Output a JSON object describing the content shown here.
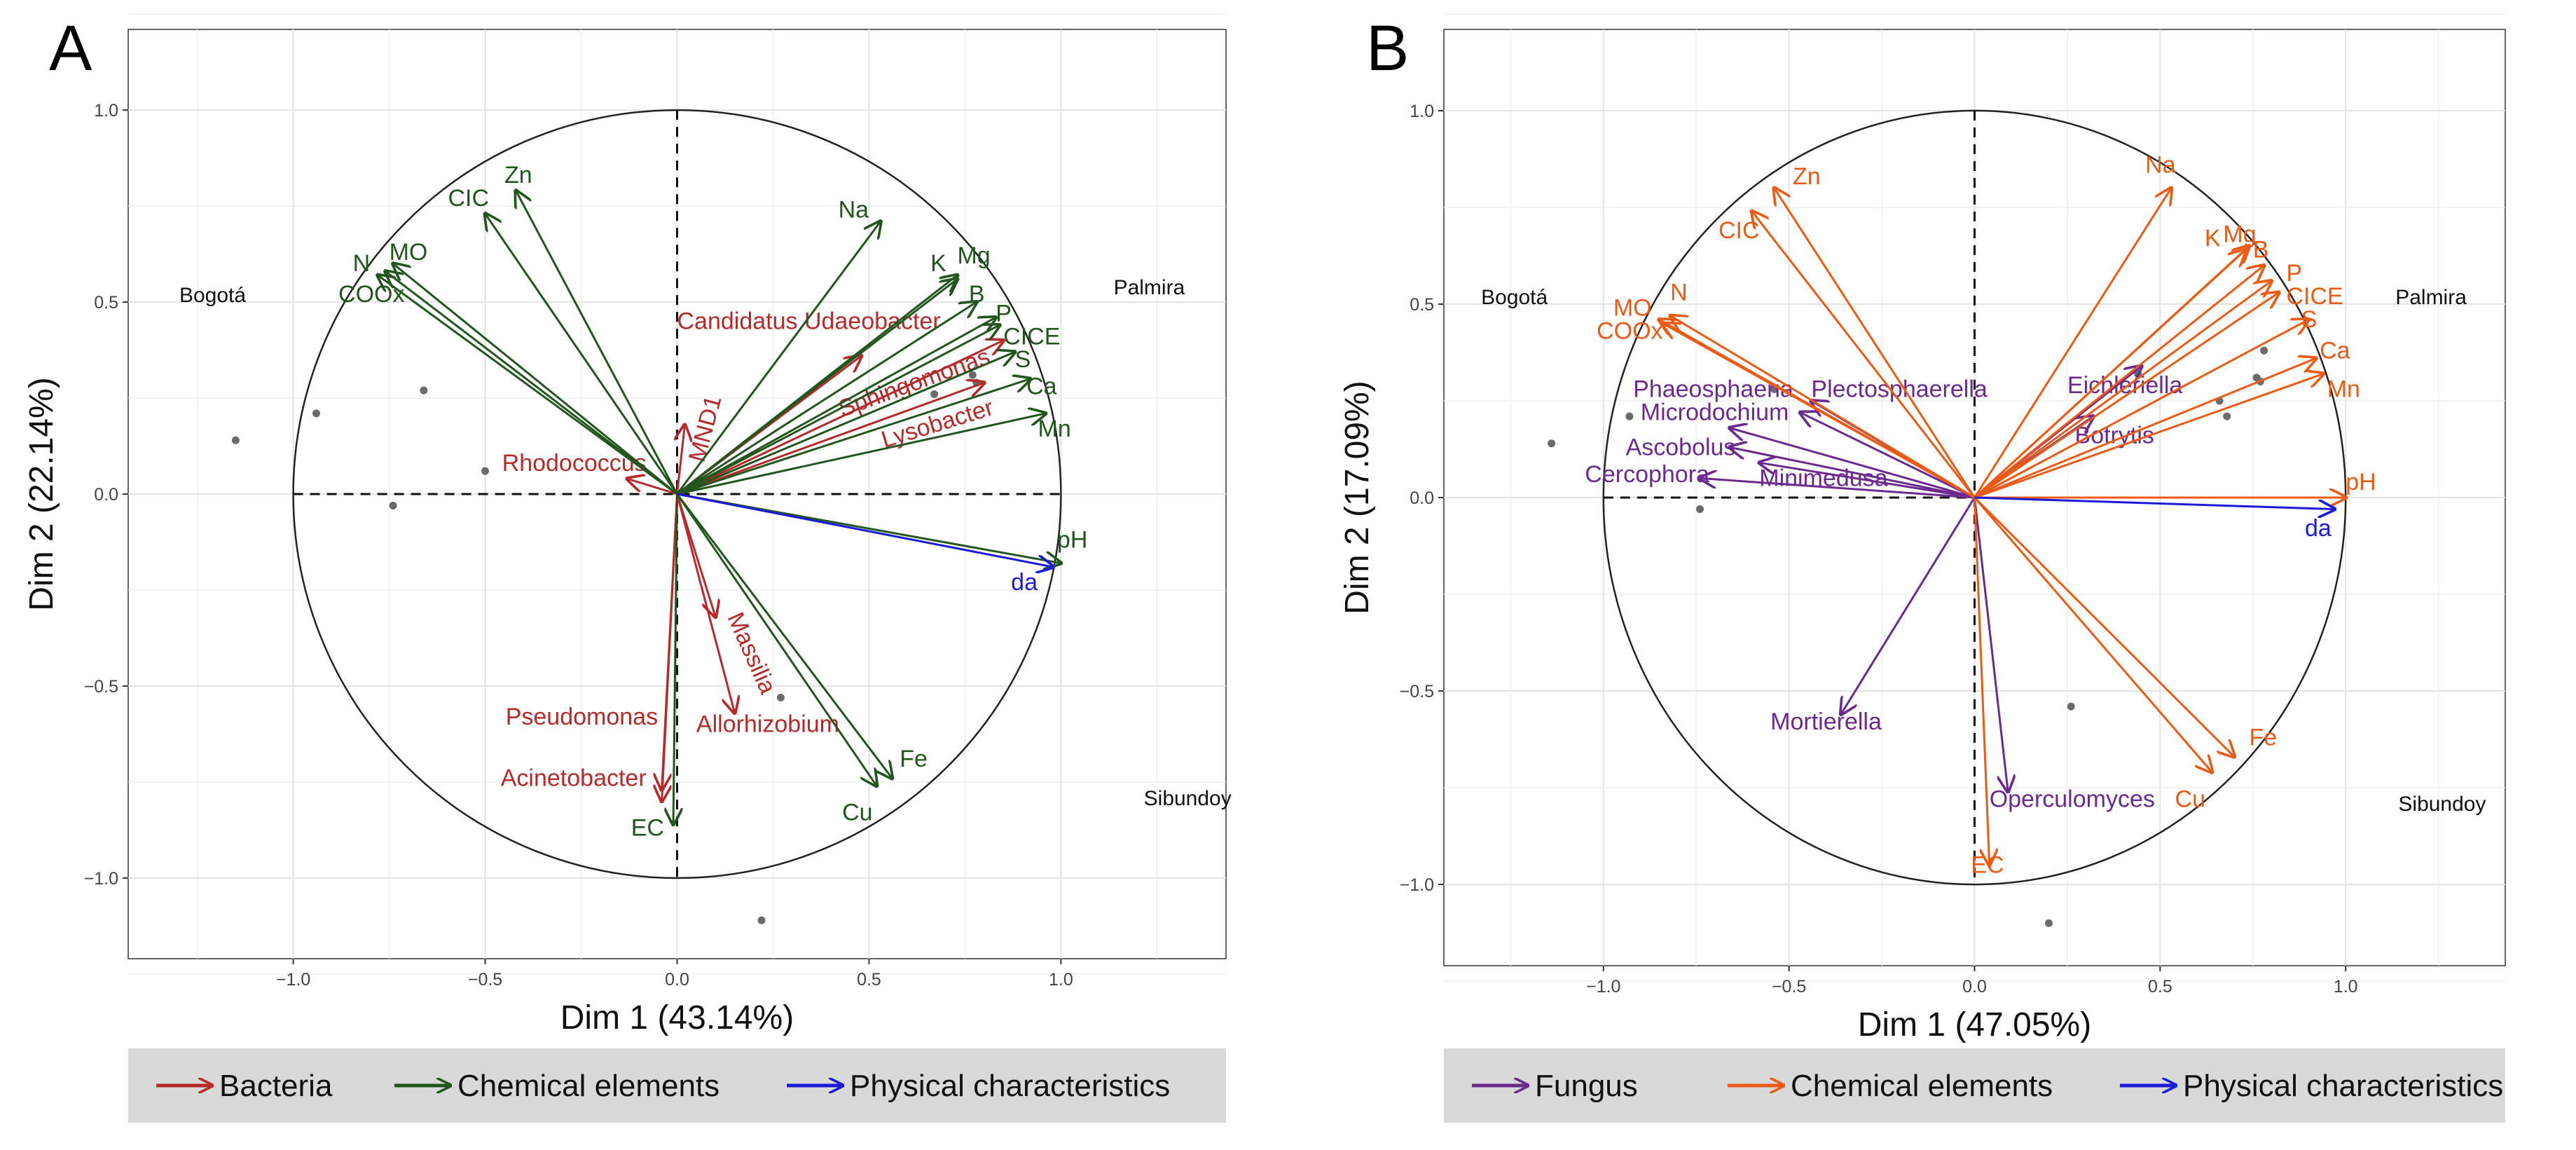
{
  "chart_data": [
    {
      "type": "scatter",
      "panel_label": "A",
      "xlabel": "Dim 1 (43.14%)",
      "ylabel": "Dim 2 (22.14%)",
      "xlim": [
        -1.43,
        1.43
      ],
      "ylim": [
        -1.21,
        1.21
      ],
      "xticks": [
        -1.0,
        -0.5,
        0.0,
        0.5,
        1.0
      ],
      "yticks": [
        -1.0,
        -0.5,
        0.0,
        0.5,
        1.0
      ],
      "xtick_labels": [
        "−1.0",
        "−0.5",
        "0.0",
        "0.5",
        "1.0"
      ],
      "ytick_labels": [
        "−1.0",
        "−0.5",
        "0.0",
        "0.5",
        "1.0"
      ],
      "grid": true,
      "unit_circle": true,
      "site_labels": [
        {
          "text": "Bogotá",
          "x": -1.21,
          "y": 0.5
        },
        {
          "text": "Palmira",
          "x": 1.23,
          "y": 0.52
        },
        {
          "text": "Sibundoy",
          "x": 1.33,
          "y": -0.81
        }
      ],
      "points": [
        {
          "x": -1.15,
          "y": 0.14
        },
        {
          "x": -0.94,
          "y": 0.21
        },
        {
          "x": -0.74,
          "y": -0.03
        },
        {
          "x": -0.66,
          "y": 0.27
        },
        {
          "x": -0.5,
          "y": 0.06
        },
        {
          "x": 0.67,
          "y": 0.26
        },
        {
          "x": 0.77,
          "y": 0.31
        },
        {
          "x": 0.78,
          "y": 0.29
        },
        {
          "x": 0.27,
          "y": -0.53
        },
        {
          "x": 0.22,
          "y": -1.11
        }
      ],
      "legend_position": "bottom",
      "legend": [
        {
          "label": "Bacteria",
          "color": "#b52a2a"
        },
        {
          "label": "Chemical elements",
          "color": "#23561f"
        },
        {
          "label": "Physical characteristics",
          "color": "#1b1bd8"
        }
      ],
      "series": [
        {
          "name": "Bacteria",
          "color": "#b52a2a",
          "vectors": [
            {
              "label": "Candidatus Udaeobacter",
              "x": 0.48,
              "y": 0.36,
              "lx": 0.0,
              "ly": 0.43,
              "anchor": "start",
              "rot": 0
            },
            {
              "label": "Sphingomonas",
              "x": 0.85,
              "y": 0.4,
              "lx": 0.43,
              "ly": 0.2,
              "anchor": "start",
              "rot": -20
            },
            {
              "label": "Lysobacter",
              "x": 0.8,
              "y": 0.29,
              "lx": 0.54,
              "ly": 0.12,
              "anchor": "start",
              "rot": -17
            },
            {
              "label": "MND1",
              "x": 0.02,
              "y": 0.18,
              "lx": 0.07,
              "ly": 0.08,
              "anchor": "start",
              "rot": -75
            },
            {
              "label": "Rhodococcus",
              "x": -0.13,
              "y": 0.04,
              "lx": -0.08,
              "ly": 0.06,
              "anchor": "end",
              "rot": 0
            },
            {
              "label": "Massilia",
              "x": 0.1,
              "y": -0.32,
              "lx": 0.13,
              "ly": -0.32,
              "anchor": "start",
              "rot": 66
            },
            {
              "label": "Allorhizobium",
              "x": 0.15,
              "y": -0.57,
              "lx": 0.05,
              "ly": -0.62,
              "anchor": "start",
              "rot": 0
            },
            {
              "label": "Pseudomonas",
              "x": -0.04,
              "y": -0.77,
              "lx": -0.05,
              "ly": -0.6,
              "anchor": "end",
              "rot": 0
            },
            {
              "label": "Acinetobacter",
              "x": -0.04,
              "y": -0.8,
              "lx": -0.08,
              "ly": -0.76,
              "anchor": "end",
              "rot": 0
            }
          ]
        },
        {
          "name": "Chemical elements",
          "color": "#23561f",
          "vectors": [
            {
              "label": "CIC",
              "x": -0.5,
              "y": 0.73,
              "lx": -0.49,
              "ly": 0.75,
              "anchor": "end",
              "rot": 0
            },
            {
              "label": "Zn",
              "x": -0.42,
              "y": 0.79,
              "lx": -0.45,
              "ly": 0.81,
              "anchor": "start",
              "rot": 0
            },
            {
              "label": "N",
              "x": -0.76,
              "y": 0.58,
              "lx": -0.8,
              "ly": 0.58,
              "anchor": "end",
              "rot": 0
            },
            {
              "label": "MO",
              "x": -0.74,
              "y": 0.6,
              "lx": -0.75,
              "ly": 0.61,
              "anchor": "start",
              "rot": 0
            },
            {
              "label": "COOx",
              "x": -0.78,
              "y": 0.57,
              "lx": -0.71,
              "ly": 0.5,
              "anchor": "end",
              "rot": 0
            },
            {
              "label": "Na",
              "x": 0.53,
              "y": 0.71,
              "lx": 0.42,
              "ly": 0.72,
              "anchor": "start",
              "rot": 0
            },
            {
              "label": "K",
              "x": 0.73,
              "y": 0.56,
              "lx": 0.66,
              "ly": 0.58,
              "anchor": "start",
              "rot": 0
            },
            {
              "label": "Mg",
              "x": 0.73,
              "y": 0.57,
              "lx": 0.73,
              "ly": 0.6,
              "anchor": "start",
              "rot": 0
            },
            {
              "label": "B",
              "x": 0.78,
              "y": 0.5,
              "lx": 0.76,
              "ly": 0.5,
              "anchor": "start",
              "rot": 0
            },
            {
              "label": "P",
              "x": 0.83,
              "y": 0.46,
              "lx": 0.83,
              "ly": 0.45,
              "anchor": "start",
              "rot": 0
            },
            {
              "label": "CICE",
              "x": 0.84,
              "y": 0.44,
              "lx": 0.85,
              "ly": 0.39,
              "anchor": "start",
              "rot": 0
            },
            {
              "label": "S",
              "x": 0.88,
              "y": 0.37,
              "lx": 0.88,
              "ly": 0.33,
              "anchor": "start",
              "rot": 0
            },
            {
              "label": "Ca",
              "x": 0.92,
              "y": 0.3,
              "lx": 0.91,
              "ly": 0.26,
              "anchor": "start",
              "rot": 0
            },
            {
              "label": "Mn",
              "x": 0.96,
              "y": 0.21,
              "lx": 0.94,
              "ly": 0.15,
              "anchor": "start",
              "rot": 0
            },
            {
              "label": "pH",
              "x": 1.0,
              "y": -0.18,
              "lx": 0.99,
              "ly": -0.14,
              "anchor": "start",
              "rot": 0
            },
            {
              "label": "Fe",
              "x": 0.56,
              "y": -0.74,
              "lx": 0.58,
              "ly": -0.71,
              "anchor": "start",
              "rot": 0
            },
            {
              "label": "Cu",
              "x": 0.52,
              "y": -0.76,
              "lx": 0.43,
              "ly": -0.85,
              "anchor": "start",
              "rot": 0
            },
            {
              "label": "EC",
              "x": -0.01,
              "y": -0.86,
              "lx": -0.12,
              "ly": -0.89,
              "anchor": "start",
              "rot": 0
            }
          ]
        },
        {
          "name": "Physical characteristics",
          "color": "#1b1bd8",
          "vectors": [
            {
              "label": "da",
              "x": 0.98,
              "y": -0.19,
              "lx": 0.87,
              "ly": -0.25,
              "anchor": "start",
              "rot": 0
            }
          ]
        }
      ]
    },
    {
      "type": "scatter",
      "panel_label": "B",
      "xlabel": "Dim 1 (47.05%)",
      "ylabel": "Dim 2 (17.09%)",
      "xlim": [
        -1.43,
        1.43
      ],
      "ylim": [
        -1.21,
        1.21
      ],
      "xticks": [
        -1.0,
        -0.5,
        0.0,
        0.5,
        1.0
      ],
      "yticks": [
        -1.0,
        -0.5,
        0.0,
        0.5,
        1.0
      ],
      "xtick_labels": [
        "−1.0",
        "−0.5",
        "0.0",
        "0.5",
        "1.0"
      ],
      "ytick_labels": [
        "−1.0",
        "−0.5",
        "0.0",
        "0.5",
        "1.0"
      ],
      "grid": true,
      "unit_circle": true,
      "site_labels": [
        {
          "text": "Bogotá",
          "x": -1.24,
          "y": 0.5
        },
        {
          "text": "Palmira",
          "x": 1.23,
          "y": 0.5
        },
        {
          "text": "Sibundoy",
          "x": 1.26,
          "y": -0.81
        }
      ],
      "points": [
        {
          "x": -1.14,
          "y": 0.14
        },
        {
          "x": -0.93,
          "y": 0.21
        },
        {
          "x": -0.74,
          "y": -0.03
        },
        {
          "x": -0.54,
          "y": 0.28
        },
        {
          "x": 0.44,
          "y": 0.32
        },
        {
          "x": 0.66,
          "y": 0.25
        },
        {
          "x": 0.68,
          "y": 0.21
        },
        {
          "x": 0.76,
          "y": 0.31
        },
        {
          "x": 0.77,
          "y": 0.3
        },
        {
          "x": 0.78,
          "y": 0.38
        },
        {
          "x": 0.26,
          "y": -0.54
        },
        {
          "x": 0.2,
          "y": -1.1
        }
      ],
      "legend_position": "bottom",
      "legend": [
        {
          "label": "Fungus",
          "color": "#6a2a8e"
        },
        {
          "label": "Chemical elements",
          "color": "#ea5b16"
        },
        {
          "label": "Physical characteristics",
          "color": "#1b1bd8"
        }
      ],
      "series": [
        {
          "name": "Fungus",
          "color": "#6a2a8e",
          "vectors": [
            {
              "label": "Phaeosphaeria",
              "x": -0.47,
              "y": 0.22,
              "lx": -0.92,
              "ly": 0.26,
              "anchor": "start",
              "rot": 0
            },
            {
              "label": "Plectosphaerella",
              "x": -0.44,
              "y": 0.25,
              "lx": -0.44,
              "ly": 0.26,
              "anchor": "start",
              "rot": 0
            },
            {
              "label": "Microdochium",
              "x": -0.66,
              "y": 0.18,
              "lx": -0.9,
              "ly": 0.2,
              "anchor": "start",
              "rot": 0
            },
            {
              "label": "Ascobolus",
              "x": -0.66,
              "y": 0.13,
              "lx": -0.94,
              "ly": 0.11,
              "anchor": "start",
              "rot": 0
            },
            {
              "label": "Minimedusa",
              "x": -0.58,
              "y": 0.09,
              "lx": -0.58,
              "ly": 0.03,
              "anchor": "start",
              "rot": 0
            },
            {
              "label": "Cercophora",
              "x": -0.74,
              "y": 0.05,
              "lx": -1.05,
              "ly": 0.04,
              "anchor": "start",
              "rot": 0
            },
            {
              "label": "Eichleriella",
              "x": 0.45,
              "y": 0.34,
              "lx": 0.25,
              "ly": 0.27,
              "anchor": "start",
              "rot": 0
            },
            {
              "label": "Botrytis",
              "x": 0.32,
              "y": 0.21,
              "lx": 0.27,
              "ly": 0.14,
              "anchor": "start",
              "rot": 0
            },
            {
              "label": "Mortierella",
              "x": -0.36,
              "y": -0.56,
              "lx": -0.55,
              "ly": -0.6,
              "anchor": "start",
              "rot": 0
            },
            {
              "label": "Operculomyces",
              "x": 0.09,
              "y": -0.76,
              "lx": 0.04,
              "ly": -0.8,
              "anchor": "start",
              "rot": 0
            }
          ]
        },
        {
          "name": "Chemical elements",
          "color": "#ea5b16",
          "vectors": [
            {
              "label": "CIC",
              "x": -0.6,
              "y": 0.74,
              "lx": -0.69,
              "ly": 0.67,
              "anchor": "start",
              "rot": 0
            },
            {
              "label": "Zn",
              "x": -0.54,
              "y": 0.8,
              "lx": -0.49,
              "ly": 0.81,
              "anchor": "start",
              "rot": 0
            },
            {
              "label": "N",
              "x": -0.82,
              "y": 0.47,
              "lx": -0.82,
              "ly": 0.51,
              "anchor": "start",
              "rot": 0
            },
            {
              "label": "MO",
              "x": -0.85,
              "y": 0.46,
              "lx": -0.87,
              "ly": 0.47,
              "anchor": "end",
              "rot": 0
            },
            {
              "label": "COOx",
              "x": -0.84,
              "y": 0.45,
              "lx": -0.84,
              "ly": 0.41,
              "anchor": "end",
              "rot": 0
            },
            {
              "label": "Na",
              "x": 0.53,
              "y": 0.8,
              "lx": 0.46,
              "ly": 0.84,
              "anchor": "start",
              "rot": 0
            },
            {
              "label": "K",
              "x": 0.73,
              "y": 0.64,
              "lx": 0.62,
              "ly": 0.65,
              "anchor": "start",
              "rot": 0
            },
            {
              "label": "Mg",
              "x": 0.74,
              "y": 0.65,
              "lx": 0.67,
              "ly": 0.66,
              "anchor": "start",
              "rot": 0
            },
            {
              "label": "B",
              "x": 0.78,
              "y": 0.6,
              "lx": 0.75,
              "ly": 0.62,
              "anchor": "start",
              "rot": 0
            },
            {
              "label": "P",
              "x": 0.8,
              "y": 0.56,
              "lx": 0.84,
              "ly": 0.56,
              "anchor": "start",
              "rot": 0
            },
            {
              "label": "CICE",
              "x": 0.82,
              "y": 0.53,
              "lx": 0.84,
              "ly": 0.5,
              "anchor": "start",
              "rot": 0
            },
            {
              "label": "S",
              "x": 0.9,
              "y": 0.46,
              "lx": 0.88,
              "ly": 0.44,
              "anchor": "start",
              "rot": 0
            },
            {
              "label": "Ca",
              "x": 0.92,
              "y": 0.36,
              "lx": 0.93,
              "ly": 0.36,
              "anchor": "start",
              "rot": 0
            },
            {
              "label": "Mn",
              "x": 0.94,
              "y": 0.32,
              "lx": 0.95,
              "ly": 0.26,
              "anchor": "start",
              "rot": 0
            },
            {
              "label": "pH",
              "x": 1.0,
              "y": 0.0,
              "lx": 1.0,
              "ly": 0.02,
              "anchor": "start",
              "rot": 0
            },
            {
              "label": "Fe",
              "x": 0.7,
              "y": -0.67,
              "lx": 0.74,
              "ly": -0.64,
              "anchor": "start",
              "rot": 0
            },
            {
              "label": "Cu",
              "x": 0.64,
              "y": -0.71,
              "lx": 0.54,
              "ly": -0.8,
              "anchor": "start",
              "rot": 0
            },
            {
              "label": "EC",
              "x": 0.04,
              "y": -0.95,
              "lx": -0.01,
              "ly": -0.97,
              "anchor": "start",
              "rot": 0
            }
          ]
        },
        {
          "name": "Physical characteristics",
          "color": "#1b1bd8",
          "vectors": [
            {
              "label": "da",
              "x": 0.97,
              "y": -0.03,
              "lx": 0.89,
              "ly": -0.1,
              "anchor": "start",
              "rot": 0
            }
          ]
        }
      ]
    }
  ]
}
